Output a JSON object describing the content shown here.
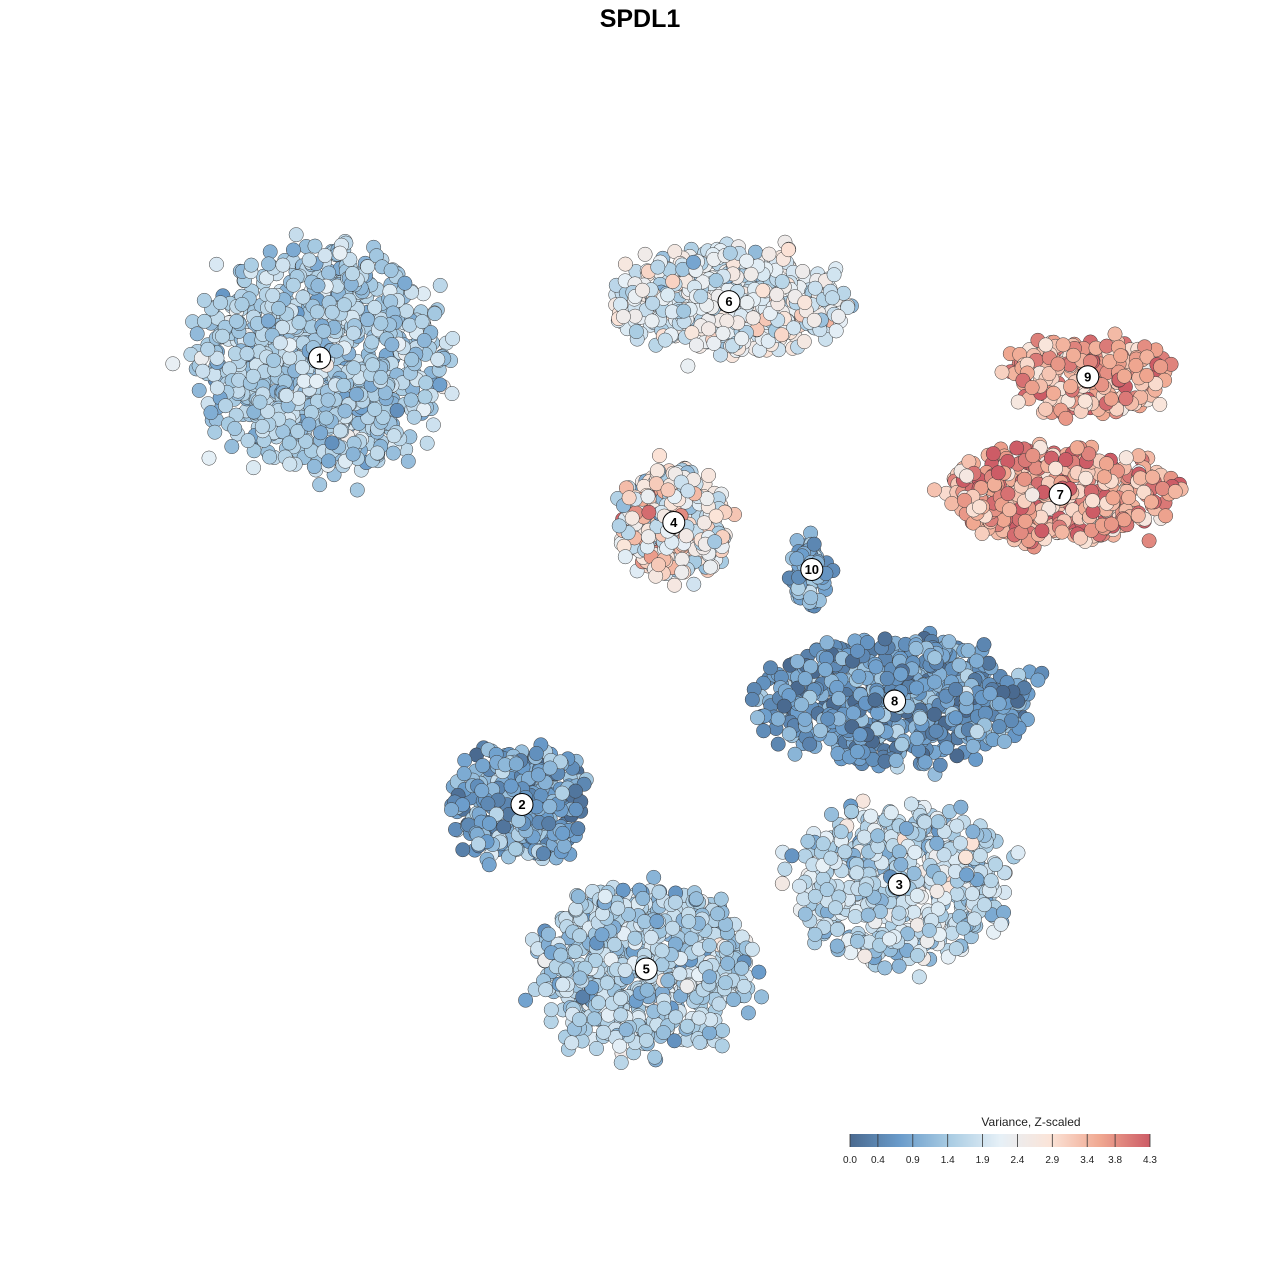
{
  "chart_data": {
    "type": "scatter",
    "title": "SPDL1",
    "xlabel": "",
    "ylabel": "",
    "grid": false,
    "legend": {
      "title": "Variance, Z-scaled",
      "placement": "bottom-right",
      "range": [
        0.0,
        4.3
      ],
      "ticks": [
        0.0,
        0.4,
        0.9,
        1.4,
        1.9,
        2.4,
        2.9,
        3.4,
        3.8,
        4.3
      ],
      "tick_labels": [
        "0.0",
        "0.4",
        "0.9",
        "1.4",
        "1.9",
        "2.4",
        "2.9",
        "3.4",
        "3.8",
        "4.3"
      ],
      "colors": [
        "#4a6a90",
        "#6a9ccb",
        "#a9cce3",
        "#e6f0f7",
        "#fbe4d8",
        "#f0a891",
        "#cd5c66"
      ]
    },
    "clusters": [
      {
        "label": "1",
        "x": -0.74,
        "y": 0.6,
        "rx": 0.25,
        "ry": 0.23,
        "mean": 1.5,
        "sd": 0.35,
        "n": 900
      },
      {
        "label": "2",
        "x": -0.3,
        "y": -0.35,
        "rx": 0.14,
        "ry": 0.12,
        "mean": 0.8,
        "sd": 0.45,
        "n": 320
      },
      {
        "label": "3",
        "x": 0.52,
        "y": -0.52,
        "rx": 0.22,
        "ry": 0.16,
        "mean": 1.7,
        "sd": 0.45,
        "n": 560
      },
      {
        "label": "4",
        "x": 0.03,
        "y": 0.25,
        "rx": 0.12,
        "ry": 0.12,
        "mean": 2.6,
        "sd": 0.75,
        "n": 380
      },
      {
        "label": "5",
        "x": -0.03,
        "y": -0.7,
        "rx": 0.22,
        "ry": 0.17,
        "mean": 1.5,
        "sd": 0.4,
        "n": 720
      },
      {
        "label": "6",
        "x": 0.15,
        "y": 0.72,
        "rx": 0.24,
        "ry": 0.11,
        "mean": 2.1,
        "sd": 0.45,
        "n": 480
      },
      {
        "label": "7",
        "x": 0.87,
        "y": 0.31,
        "rx": 0.24,
        "ry": 0.1,
        "mean": 3.6,
        "sd": 0.5,
        "n": 420
      },
      {
        "label": "8",
        "x": 0.51,
        "y": -0.13,
        "rx": 0.28,
        "ry": 0.13,
        "mean": 0.7,
        "sd": 0.45,
        "n": 620
      },
      {
        "label": "9",
        "x": 0.93,
        "y": 0.56,
        "rx": 0.17,
        "ry": 0.08,
        "mean": 3.5,
        "sd": 0.5,
        "n": 240
      },
      {
        "label": "10",
        "x": 0.33,
        "y": 0.15,
        "rx": 0.04,
        "ry": 0.08,
        "mean": 0.9,
        "sd": 0.4,
        "n": 80
      }
    ]
  }
}
